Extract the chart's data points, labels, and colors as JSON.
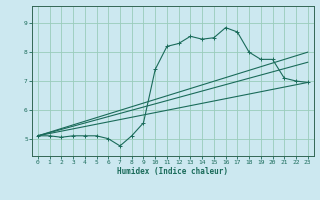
{
  "xlabel": "Humidex (Indice chaleur)",
  "background_color": "#cce8f0",
  "grid_color": "#99ccbb",
  "line_color": "#1a6b5a",
  "spine_color": "#336655",
  "xlim": [
    -0.5,
    23.5
  ],
  "ylim": [
    4.4,
    9.6
  ],
  "xticks": [
    0,
    1,
    2,
    3,
    4,
    5,
    6,
    7,
    8,
    9,
    10,
    11,
    12,
    13,
    14,
    15,
    16,
    17,
    18,
    19,
    20,
    21,
    22,
    23
  ],
  "yticks": [
    5,
    6,
    7,
    8,
    9
  ],
  "main_x": [
    0,
    1,
    2,
    3,
    4,
    5,
    6,
    7,
    8,
    9,
    10,
    11,
    12,
    13,
    14,
    15,
    16,
    17,
    18,
    19,
    20,
    21,
    22,
    23
  ],
  "main_y": [
    5.1,
    5.1,
    5.05,
    5.1,
    5.1,
    5.1,
    5.0,
    4.75,
    5.1,
    5.55,
    7.4,
    8.2,
    8.3,
    8.55,
    8.45,
    8.5,
    8.85,
    8.7,
    8.0,
    7.75,
    7.75,
    7.1,
    7.0,
    6.95
  ],
  "line1_x": [
    0,
    23
  ],
  "line1_y": [
    5.1,
    6.95
  ],
  "line2_x": [
    0,
    23
  ],
  "line2_y": [
    5.1,
    8.0
  ],
  "line3_x": [
    0,
    23
  ],
  "line3_y": [
    5.1,
    7.65
  ]
}
